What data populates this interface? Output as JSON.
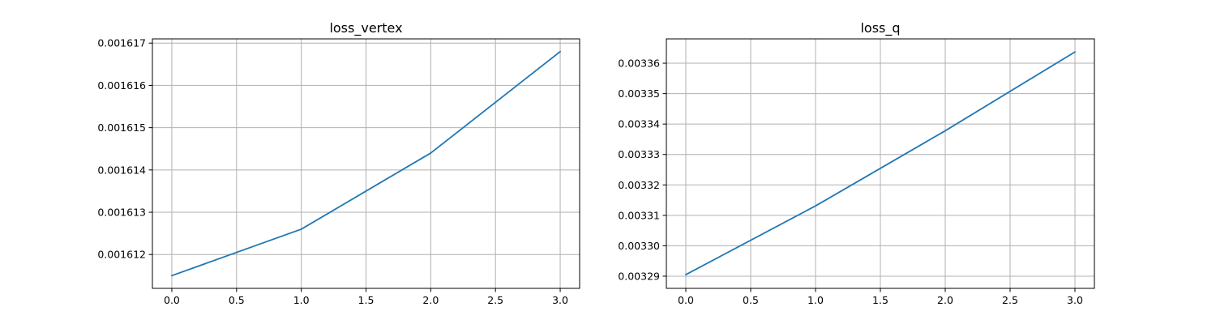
{
  "chart_data": [
    {
      "type": "line",
      "title": "loss_vertex",
      "xlabel": "",
      "ylabel": "",
      "grid": true,
      "xlim": [
        -0.15,
        3.15
      ],
      "ylim": [
        0.0016112,
        0.0016171
      ],
      "xticks": [
        "0.0",
        "0.5",
        "1.0",
        "1.5",
        "2.0",
        "2.5",
        "3.0"
      ],
      "xtick_values": [
        0,
        0.5,
        1,
        1.5,
        2,
        2.5,
        3
      ],
      "yticks": [
        "0.001612",
        "0.001613",
        "0.001614",
        "0.001615",
        "0.001616",
        "0.001617"
      ],
      "ytick_values": [
        0.001612,
        0.001613,
        0.001614,
        0.001615,
        0.001616,
        0.001617
      ],
      "series": [
        {
          "name": "loss_vertex",
          "x": [
            0,
            1,
            2,
            3
          ],
          "y": [
            0.0016115,
            0.0016126,
            0.0016144,
            0.0016168
          ]
        }
      ]
    },
    {
      "type": "line",
      "title": "loss_q",
      "xlabel": "",
      "ylabel": "",
      "grid": true,
      "xlim": [
        -0.15,
        3.15
      ],
      "ylim": [
        0.003286,
        0.003368
      ],
      "xticks": [
        "0.0",
        "0.5",
        "1.0",
        "1.5",
        "2.0",
        "2.5",
        "3.0"
      ],
      "xtick_values": [
        0,
        0.5,
        1,
        1.5,
        2,
        2.5,
        3
      ],
      "yticks": [
        "0.00329",
        "0.00330",
        "0.00331",
        "0.00332",
        "0.00333",
        "0.00334",
        "0.00335",
        "0.00336"
      ],
      "ytick_values": [
        0.00329,
        0.0033,
        0.00331,
        0.00332,
        0.00333,
        0.00334,
        0.00335,
        0.00336
      ],
      "series": [
        {
          "name": "loss_q",
          "x": [
            0,
            1,
            2,
            3
          ],
          "y": [
            0.0032905,
            0.0033131,
            0.0033378,
            0.0033637
          ]
        }
      ]
    }
  ],
  "colors": {
    "series": "#1f77b4",
    "grid": "#b0b0b0",
    "axes": "#000000"
  }
}
